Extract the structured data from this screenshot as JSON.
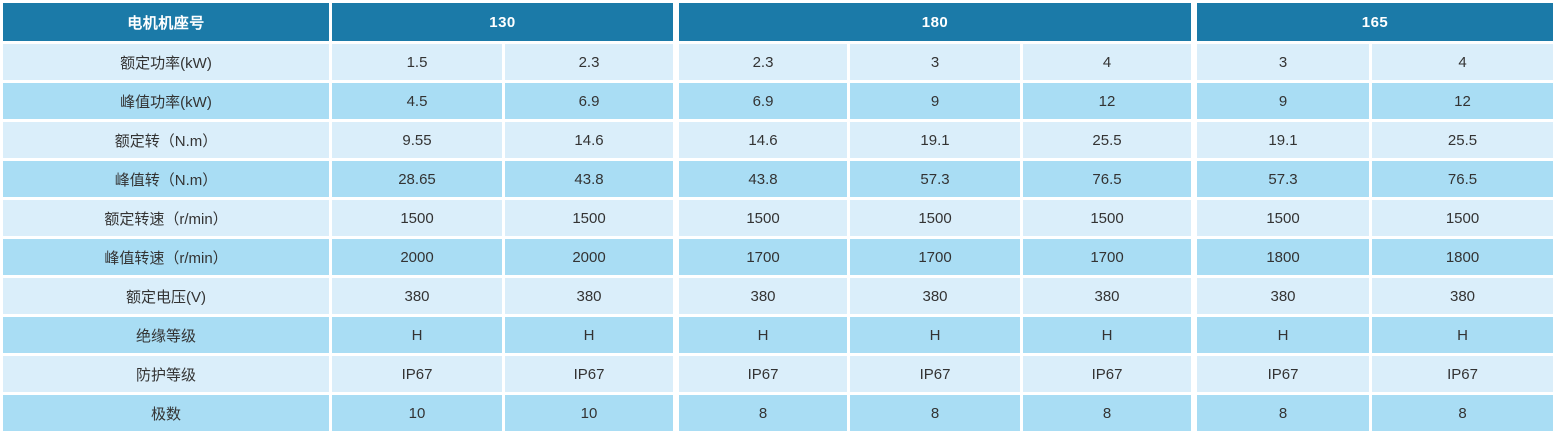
{
  "table": {
    "corner_header": "电机机座号",
    "groups": [
      {
        "label": "130",
        "span": 2
      },
      {
        "label": "180",
        "span": 3
      },
      {
        "label": "165",
        "span": 2
      }
    ],
    "rows": [
      {
        "label": "额定功率(kW)",
        "values": [
          "1.5",
          "2.3",
          "2.3",
          "3",
          "4",
          "3",
          "4"
        ]
      },
      {
        "label": "峰值功率(kW)",
        "values": [
          "4.5",
          "6.9",
          "6.9",
          "9",
          "12",
          "9",
          "12"
        ]
      },
      {
        "label": "额定转（N.m）",
        "values": [
          "9.55",
          "14.6",
          "14.6",
          "19.1",
          "25.5",
          "19.1",
          "25.5"
        ]
      },
      {
        "label": "峰值转（N.m）",
        "values": [
          "28.65",
          "43.8",
          "43.8",
          "57.3",
          "76.5",
          "57.3",
          "76.5"
        ]
      },
      {
        "label": "额定转速（r/min）",
        "values": [
          "1500",
          "1500",
          "1500",
          "1500",
          "1500",
          "1500",
          "1500"
        ]
      },
      {
        "label": "峰值转速（r/min）",
        "values": [
          "2000",
          "2000",
          "1700",
          "1700",
          "1700",
          "1800",
          "1800"
        ]
      },
      {
        "label": "额定电压(V)",
        "values": [
          "380",
          "380",
          "380",
          "380",
          "380",
          "380",
          "380"
        ]
      },
      {
        "label": "绝缘等级",
        "values": [
          "H",
          "H",
          "H",
          "H",
          "H",
          "H",
          "H"
        ]
      },
      {
        "label": "防护等级",
        "values": [
          "IP67",
          "IP67",
          "IP67",
          "IP67",
          "IP67",
          "IP67",
          "IP67"
        ]
      },
      {
        "label": "极数",
        "values": [
          "10",
          "10",
          "8",
          "8",
          "8",
          "8",
          "8"
        ]
      }
    ],
    "colors": {
      "header_bg": "#1b7aa8",
      "row_light": "#daeefa",
      "row_medium": "#a9ddf4",
      "text": "#333333",
      "header_text": "#ffffff",
      "divider": "#ffffff"
    }
  }
}
